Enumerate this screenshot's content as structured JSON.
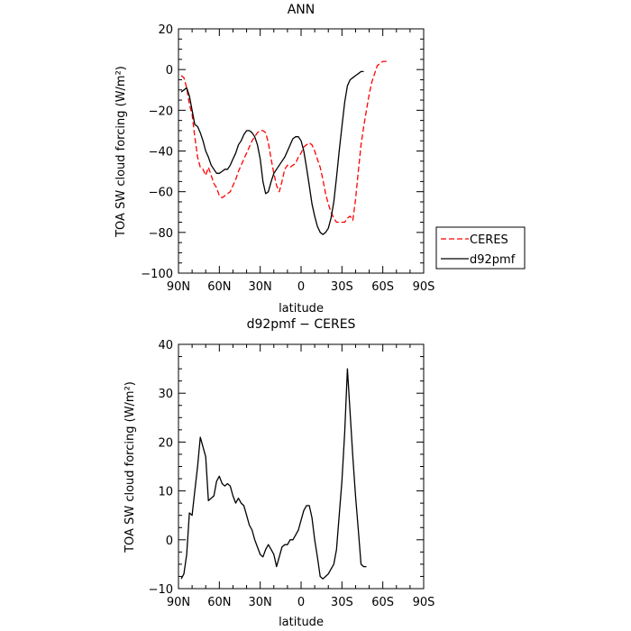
{
  "chart_data": [
    {
      "type": "line",
      "title": "ANN",
      "xlabel": "latitude",
      "ylabel": "TOA SW cloud forcing (W/m²)",
      "xlim": [
        90,
        -90
      ],
      "ylim": [
        -100,
        20
      ],
      "x_ticks": [
        90,
        60,
        30,
        0,
        -30,
        -60,
        -90
      ],
      "x_tick_labels": [
        "90N",
        "60N",
        "30N",
        "0",
        "30S",
        "60S",
        "90S"
      ],
      "y_ticks": [
        -100,
        -80,
        -60,
        -40,
        -20,
        0,
        20
      ],
      "y_tick_labels": [
        "−100",
        "−80",
        "−60",
        "−40",
        "−20",
        "0",
        "20"
      ],
      "legend_position": "right",
      "series": [
        {
          "name": "CERES",
          "color": "#ff0000",
          "dash": "dashed",
          "points": [
            [
              88,
              -3
            ],
            [
              86,
              -4
            ],
            [
              84,
              -9
            ],
            [
              82,
              -17
            ],
            [
              80,
              -22
            ],
            [
              78,
              -33
            ],
            [
              76,
              -43
            ],
            [
              74,
              -48
            ],
            [
              72,
              -49
            ],
            [
              70,
              -52
            ],
            [
              68,
              -48
            ],
            [
              66,
              -52
            ],
            [
              64,
              -56
            ],
            [
              62,
              -58
            ],
            [
              60,
              -62
            ],
            [
              58,
              -63
            ],
            [
              56,
              -62
            ],
            [
              54,
              -61
            ],
            [
              52,
              -60
            ],
            [
              50,
              -57
            ],
            [
              48,
              -54
            ],
            [
              46,
              -50
            ],
            [
              44,
              -47
            ],
            [
              42,
              -44
            ],
            [
              40,
              -41
            ],
            [
              38,
              -38
            ],
            [
              36,
              -35
            ],
            [
              34,
              -33
            ],
            [
              32,
              -31
            ],
            [
              30,
              -30
            ],
            [
              28,
              -30
            ],
            [
              26,
              -31
            ],
            [
              24,
              -36
            ],
            [
              22,
              -44
            ],
            [
              20,
              -51
            ],
            [
              18,
              -57
            ],
            [
              16,
              -60
            ],
            [
              14,
              -55
            ],
            [
              12,
              -49
            ],
            [
              10,
              -47
            ],
            [
              8,
              -48
            ],
            [
              6,
              -47
            ],
            [
              4,
              -46
            ],
            [
              2,
              -43
            ],
            [
              0,
              -41
            ],
            [
              -2,
              -38
            ],
            [
              -4,
              -37
            ],
            [
              -6,
              -36
            ],
            [
              -8,
              -37
            ],
            [
              -10,
              -40
            ],
            [
              -12,
              -44
            ],
            [
              -14,
              -48
            ],
            [
              -16,
              -54
            ],
            [
              -18,
              -61
            ],
            [
              -20,
              -66
            ],
            [
              -22,
              -70
            ],
            [
              -24,
              -73
            ],
            [
              -26,
              -75
            ],
            [
              -28,
              -75
            ],
            [
              -30,
              -75
            ],
            [
              -32,
              -75
            ],
            [
              -34,
              -73
            ],
            [
              -36,
              -72
            ],
            [
              -38,
              -74
            ],
            [
              -40,
              -64
            ],
            [
              -42,
              -50
            ],
            [
              -44,
              -37
            ],
            [
              -46,
              -28
            ],
            [
              -48,
              -20
            ],
            [
              -50,
              -12
            ],
            [
              -52,
              -6
            ],
            [
              -54,
              -2
            ],
            [
              -56,
              2
            ],
            [
              -58,
              3
            ],
            [
              -60,
              4
            ],
            [
              -62,
              4
            ],
            [
              -64,
              4
            ]
          ]
        },
        {
          "name": "d92pmf",
          "color": "#000000",
          "dash": "solid",
          "points": [
            [
              88,
              -11
            ],
            [
              86,
              -10
            ],
            [
              84,
              -9
            ],
            [
              82,
              -13
            ],
            [
              80,
              -20
            ],
            [
              78,
              -27
            ],
            [
              76,
              -28
            ],
            [
              74,
              -31
            ],
            [
              72,
              -35
            ],
            [
              70,
              -40
            ],
            [
              68,
              -43
            ],
            [
              66,
              -47
            ],
            [
              64,
              -49
            ],
            [
              62,
              -51
            ],
            [
              60,
              -51
            ],
            [
              58,
              -50
            ],
            [
              56,
              -49
            ],
            [
              54,
              -49
            ],
            [
              52,
              -47
            ],
            [
              50,
              -44
            ],
            [
              48,
              -41
            ],
            [
              46,
              -37
            ],
            [
              44,
              -35
            ],
            [
              42,
              -32
            ],
            [
              40,
              -30
            ],
            [
              38,
              -30
            ],
            [
              36,
              -31
            ],
            [
              34,
              -33
            ],
            [
              32,
              -37
            ],
            [
              30,
              -44
            ],
            [
              28,
              -55
            ],
            [
              26,
              -61
            ],
            [
              24,
              -60
            ],
            [
              22,
              -55
            ],
            [
              20,
              -51
            ],
            [
              18,
              -49
            ],
            [
              16,
              -47
            ],
            [
              14,
              -45
            ],
            [
              12,
              -43
            ],
            [
              10,
              -40
            ],
            [
              8,
              -37
            ],
            [
              6,
              -34
            ],
            [
              4,
              -33
            ],
            [
              2,
              -33
            ],
            [
              0,
              -35
            ],
            [
              -2,
              -40
            ],
            [
              -4,
              -48
            ],
            [
              -6,
              -57
            ],
            [
              -8,
              -66
            ],
            [
              -10,
              -72
            ],
            [
              -12,
              -77
            ],
            [
              -14,
              -80
            ],
            [
              -16,
              -81
            ],
            [
              -18,
              -80
            ],
            [
              -20,
              -78
            ],
            [
              -22,
              -73
            ],
            [
              -24,
              -65
            ],
            [
              -26,
              -53
            ],
            [
              -28,
              -40
            ],
            [
              -30,
              -28
            ],
            [
              -32,
              -16
            ],
            [
              -34,
              -8
            ],
            [
              -36,
              -5
            ],
            [
              -38,
              -4
            ],
            [
              -40,
              -3
            ],
            [
              -42,
              -2
            ],
            [
              -44,
              -1
            ],
            [
              -46,
              -1
            ]
          ]
        }
      ]
    },
    {
      "type": "line",
      "title": "d92pmf − CERES",
      "xlabel": "latitude",
      "ylabel": "TOA SW cloud forcing (W/m²)",
      "xlim": [
        90,
        -90
      ],
      "ylim": [
        -10,
        40
      ],
      "x_ticks": [
        90,
        60,
        30,
        0,
        -30,
        -60,
        -90
      ],
      "x_tick_labels": [
        "90N",
        "60N",
        "30N",
        "0",
        "30S",
        "60S",
        "90S"
      ],
      "y_ticks": [
        -10,
        0,
        10,
        20,
        30,
        40
      ],
      "y_tick_labels": [
        "−10",
        "0",
        "10",
        "20",
        "30",
        "40"
      ],
      "series": [
        {
          "name": "",
          "color": "#000000",
          "dash": "solid",
          "points": [
            [
              88,
              -8
            ],
            [
              86,
              -7
            ],
            [
              84,
              -3
            ],
            [
              82,
              5.5
            ],
            [
              80,
              5
            ],
            [
              78,
              10
            ],
            [
              76,
              15
            ],
            [
              74,
              21
            ],
            [
              72,
              19
            ],
            [
              70,
              17
            ],
            [
              68,
              8
            ],
            [
              66,
              8.5
            ],
            [
              64,
              9
            ],
            [
              62,
              12
            ],
            [
              60,
              13
            ],
            [
              58,
              11.5
            ],
            [
              56,
              11
            ],
            [
              54,
              11.5
            ],
            [
              52,
              11
            ],
            [
              50,
              9
            ],
            [
              48,
              7.5
            ],
            [
              46,
              8.5
            ],
            [
              44,
              7.5
            ],
            [
              42,
              7
            ],
            [
              40,
              5
            ],
            [
              38,
              3
            ],
            [
              36,
              2
            ],
            [
              34,
              0
            ],
            [
              32,
              -1.5
            ],
            [
              30,
              -3
            ],
            [
              28,
              -3.5
            ],
            [
              26,
              -2
            ],
            [
              24,
              -1
            ],
            [
              22,
              -2
            ],
            [
              20,
              -3
            ],
            [
              18,
              -5.5
            ],
            [
              16,
              -3.5
            ],
            [
              14,
              -1.5
            ],
            [
              12,
              -1
            ],
            [
              10,
              -1
            ],
            [
              8,
              0
            ],
            [
              6,
              0
            ],
            [
              4,
              1
            ],
            [
              2,
              2
            ],
            [
              0,
              4
            ],
            [
              -2,
              6
            ],
            [
              -4,
              7
            ],
            [
              -6,
              7
            ],
            [
              -8,
              4.5
            ],
            [
              -10,
              0
            ],
            [
              -12,
              -3.5
            ],
            [
              -14,
              -7.5
            ],
            [
              -16,
              -8
            ],
            [
              -18,
              -7.5
            ],
            [
              -20,
              -7
            ],
            [
              -22,
              -6
            ],
            [
              -24,
              -5
            ],
            [
              -26,
              -2
            ],
            [
              -28,
              5
            ],
            [
              -30,
              12
            ],
            [
              -32,
              22
            ],
            [
              -34,
              35
            ],
            [
              -36,
              26
            ],
            [
              -38,
              17
            ],
            [
              -40,
              9
            ],
            [
              -42,
              2
            ],
            [
              -44,
              -5
            ],
            [
              -46,
              -5.5
            ],
            [
              -48,
              -5.5
            ]
          ]
        }
      ]
    }
  ]
}
